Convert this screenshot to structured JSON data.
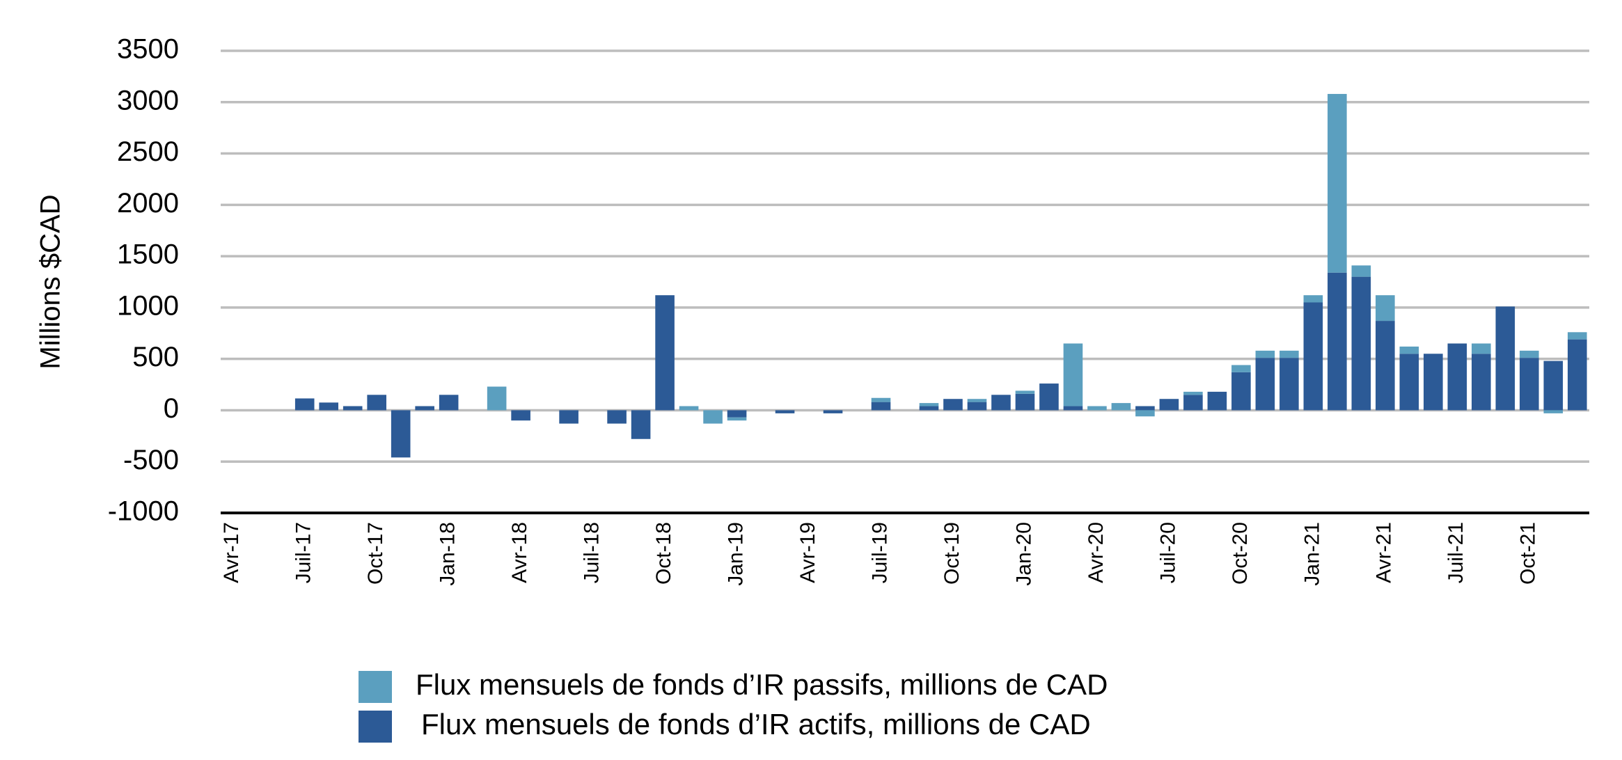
{
  "chart_data": {
    "type": "stacked_bar",
    "y_label": "Millions $CAD",
    "categories": [
      "Avr-17",
      null,
      null,
      "Juil-17",
      null,
      null,
      "Oct-17",
      null,
      null,
      "Jan-18",
      null,
      null,
      "Avr-18",
      null,
      null,
      "Juil-18",
      null,
      null,
      "Oct-18",
      null,
      null,
      "Jan-19",
      null,
      null,
      "Avr-19",
      null,
      null,
      "Juil-19",
      null,
      null,
      "Oct-19",
      null,
      null,
      "Jan-20",
      null,
      null,
      "Avr-20",
      null,
      null,
      "Juil-20",
      null,
      null,
      "Oct-20",
      null,
      null,
      "Jan-21",
      null,
      null,
      "Avr-21",
      null,
      null,
      "Juil-21",
      null,
      null,
      "Oct-21",
      null,
      null
    ],
    "series": [
      {
        "name": "Flux mensuels de fonds d’IR actifs, millions de CAD",
        "color": "#2c5a96",
        "values": [
          0,
          0,
          0,
          115,
          75,
          40,
          150,
          -460,
          40,
          150,
          0,
          0,
          -100,
          0,
          -130,
          0,
          -130,
          -280,
          1120,
          0,
          0,
          -70,
          0,
          -30,
          0,
          -30,
          0,
          80,
          0,
          40,
          110,
          80,
          150,
          160,
          260,
          40,
          0,
          0,
          40,
          110,
          150,
          180,
          370,
          510,
          510,
          1050,
          1340,
          1300,
          870,
          550,
          550,
          650,
          550,
          1010,
          510,
          480,
          690
        ]
      },
      {
        "name": "Flux mensuels de fonds d’IR passifs, millions de CAD",
        "color": "#5b9fbf",
        "values": [
          0,
          0,
          0,
          0,
          0,
          0,
          0,
          0,
          0,
          0,
          0,
          230,
          0,
          0,
          0,
          0,
          0,
          0,
          0,
          40,
          -130,
          -30,
          0,
          0,
          0,
          0,
          0,
          40,
          0,
          30,
          0,
          30,
          0,
          30,
          0,
          610,
          40,
          70,
          -60,
          0,
          30,
          0,
          70,
          70,
          70,
          70,
          1740,
          110,
          250,
          70,
          0,
          0,
          100,
          0,
          70,
          -30,
          70
        ]
      }
    ],
    "ylim": [
      -1000,
      3500
    ],
    "yticks": [
      -1000,
      -500,
      0,
      500,
      1000,
      1500,
      2000,
      2500,
      3000,
      3500
    ],
    "grid": true
  }
}
